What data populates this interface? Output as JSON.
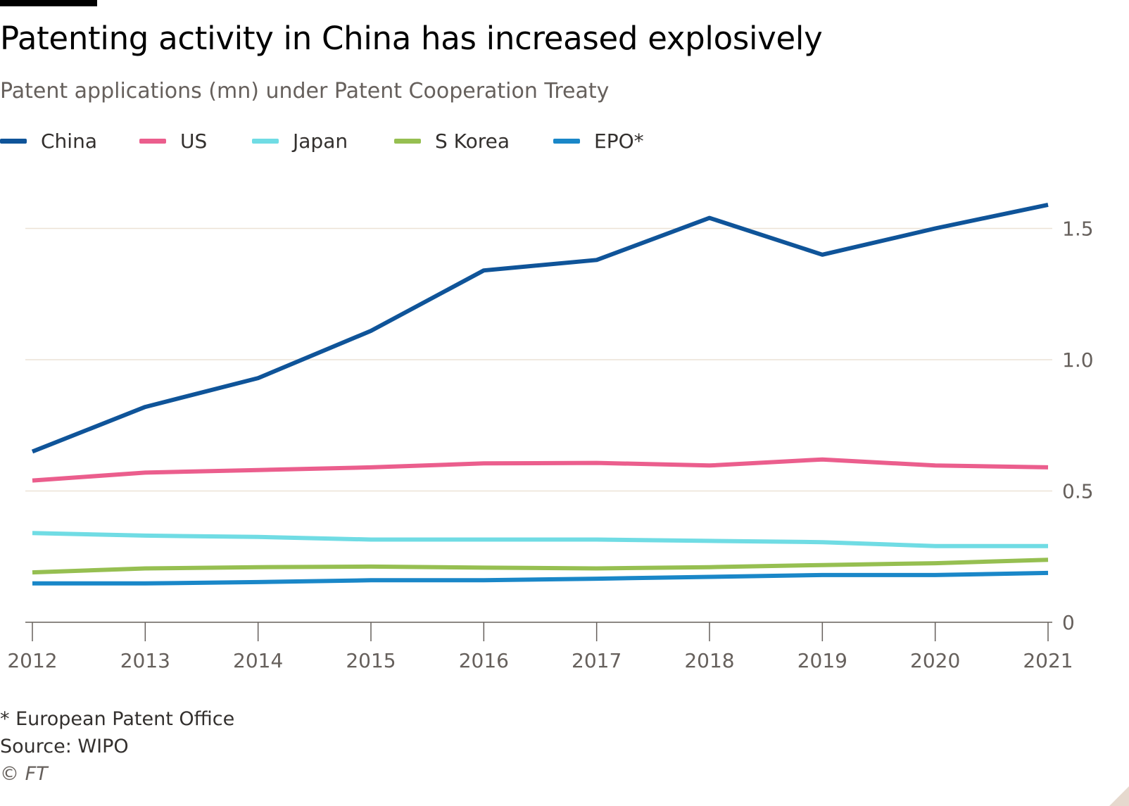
{
  "chart_data": {
    "type": "line",
    "title": "Patenting activity in China has increased explosively",
    "subtitle": "Patent applications (mn) under Patent Cooperation Treaty",
    "x": [
      2012,
      2013,
      2014,
      2015,
      2016,
      2017,
      2018,
      2019,
      2020,
      2021
    ],
    "xticks": [
      "2012",
      "2013",
      "2014",
      "2015",
      "2016",
      "2017",
      "2018",
      "2019",
      "2020",
      "2021"
    ],
    "ylim": [
      0,
      1.65
    ],
    "yticks": [
      0,
      0.5,
      1.0,
      1.5
    ],
    "ytick_labels": [
      "0",
      "0.5",
      "1.0",
      "1.5"
    ],
    "y_axis_side": "right",
    "grid": true,
    "legend_placement": "top-left",
    "series": [
      {
        "name": "China",
        "color": "#0f5499",
        "values": [
          0.65,
          0.82,
          0.93,
          1.11,
          1.34,
          1.38,
          1.54,
          1.4,
          1.5,
          1.59
        ]
      },
      {
        "name": "US",
        "color": "#eb5e8d",
        "values": [
          0.54,
          0.57,
          0.58,
          0.59,
          0.605,
          0.607,
          0.597,
          0.62,
          0.597,
          0.59
        ]
      },
      {
        "name": "Japan",
        "color": "#70dce4",
        "values": [
          0.34,
          0.33,
          0.325,
          0.315,
          0.315,
          0.315,
          0.31,
          0.305,
          0.29,
          0.29
        ]
      },
      {
        "name": "S Korea",
        "color": "#96bf51",
        "values": [
          0.19,
          0.205,
          0.21,
          0.212,
          0.208,
          0.205,
          0.21,
          0.218,
          0.225,
          0.238
        ]
      },
      {
        "name": "EPO*",
        "color": "#1a87c8",
        "values": [
          0.148,
          0.148,
          0.153,
          0.16,
          0.16,
          0.166,
          0.173,
          0.18,
          0.18,
          0.188
        ]
      }
    ]
  },
  "footnotes": {
    "note": "* European Patent Office",
    "source": "Source: WIPO",
    "copyright": "© FT"
  }
}
